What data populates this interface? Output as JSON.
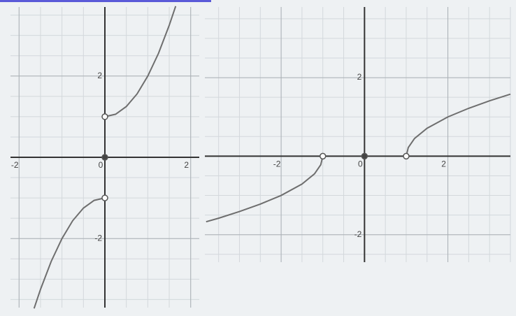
{
  "chart_data": [
    {
      "type": "line",
      "xlim": [
        -2.2,
        2.2
      ],
      "ylim": [
        -3.7,
        3.7
      ],
      "xticks": [
        -2,
        0,
        2
      ],
      "yticks": [
        -2,
        2
      ],
      "minor_xticks": [
        -2,
        -1.5,
        -1,
        -0.5,
        0.5,
        1,
        1.5,
        2
      ],
      "minor_yticks": [
        -3.5,
        -3,
        -2.5,
        -2,
        -1.5,
        -1,
        -0.5,
        0.5,
        1,
        1.5,
        2,
        2.5,
        3,
        3.5
      ],
      "series": [
        {
          "color": "#6e6e6e",
          "x": [
            -1.65,
            -1.5,
            -1.25,
            -1,
            -0.75,
            -0.5,
            -0.25,
            0
          ],
          "values": [
            -3.72,
            -3.25,
            -2.56,
            -2,
            -1.56,
            -1.25,
            -1.06,
            -1
          ]
        },
        {
          "color": "#6e6e6e",
          "x": [
            0,
            0.25,
            0.5,
            0.75,
            1,
            1.25,
            1.5,
            1.65
          ],
          "values": [
            1,
            1.06,
            1.25,
            1.56,
            2,
            2.56,
            3.25,
            3.72
          ]
        }
      ],
      "points": [
        {
          "x": 0,
          "y": 0,
          "filled": true
        },
        {
          "x": 0,
          "y": 1,
          "filled": false
        },
        {
          "x": 0,
          "y": -1,
          "filled": false
        }
      ]
    },
    {
      "type": "line",
      "xlim": [
        -3.83,
        3.5
      ],
      "ylim": [
        -2.7,
        3.8
      ],
      "xticks": [
        -2,
        0,
        2
      ],
      "yticks": [
        -2,
        2
      ],
      "minor_xticks": [
        -3.5,
        -3,
        -2.5,
        -2,
        -1.5,
        -1,
        -0.5,
        0.5,
        1,
        1.5,
        2,
        2.5,
        3,
        3.5
      ],
      "minor_yticks": [
        -2.5,
        -2,
        -1.5,
        -1,
        -0.5,
        0.5,
        1,
        1.5,
        2,
        2.5,
        3,
        3.5
      ],
      "series": [
        {
          "color": "#6e6e6e",
          "x": [
            -1,
            -1.05,
            -1.2,
            -1.5,
            -2,
            -2.5,
            -3,
            -3.5,
            -3.8
          ],
          "values": [
            0,
            -0.22,
            -0.45,
            -0.71,
            -1,
            -1.22,
            -1.41,
            -1.58,
            -1.67
          ]
        },
        {
          "color": "#6e6e6e",
          "x": [
            1,
            1.05,
            1.2,
            1.5,
            2,
            2.5,
            3,
            3.5
          ],
          "values": [
            0,
            0.22,
            0.45,
            0.71,
            1,
            1.22,
            1.41,
            1.58
          ]
        }
      ],
      "points": [
        {
          "x": 0,
          "y": 0,
          "filled": true
        },
        {
          "x": -1,
          "y": 0,
          "filled": false
        },
        {
          "x": 1,
          "y": 0,
          "filled": false
        }
      ]
    }
  ]
}
